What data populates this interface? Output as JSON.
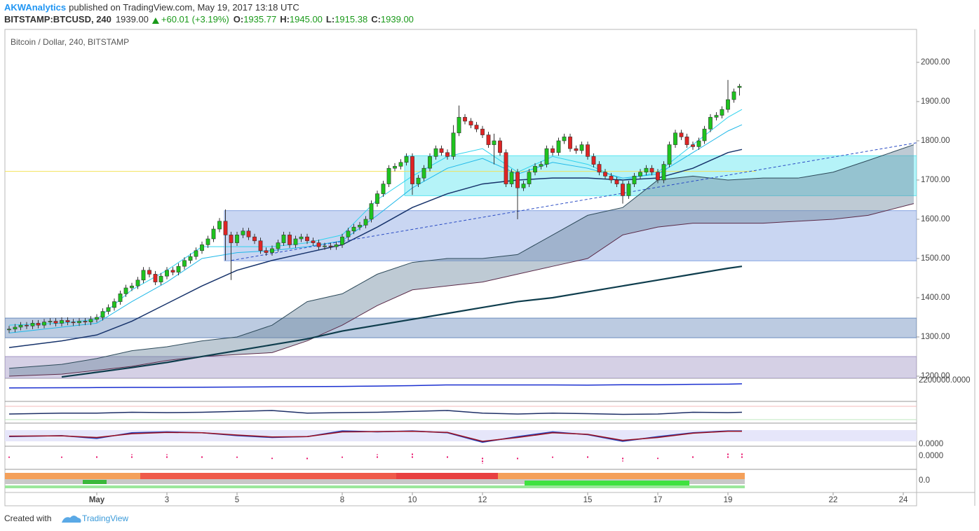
{
  "header": {
    "publisher": "AKWAnalytics",
    "published": "published on TradingView.com, May 19, 2017 13:18 UTC",
    "symbol": "BITSTAMP:BTCUSD, 240",
    "last": "1939.00",
    "change": "+60.01 (+3.19%)",
    "o_label": "O:",
    "o": "1935.77",
    "h_label": "H:",
    "h": "1945.00",
    "l_label": "L:",
    "l": "1915.38",
    "c_label": "C:",
    "c": "1939.00"
  },
  "footer": {
    "text": "Created with",
    "brand": "TradingView"
  },
  "chart_data": {
    "type": "candlestick",
    "title": "Bitcoin / Dollar, 240, BITSTAMP",
    "up_color": "#1ec41e",
    "down_color": "#e02424",
    "x": [
      -1.5,
      -1.33,
      -1.17,
      -1,
      -0.83,
      -0.67,
      -0.5,
      -0.33,
      -0.17,
      0,
      0.17,
      0.33,
      0.5,
      0.67,
      0.83,
      1,
      1.17,
      1.33,
      1.5,
      1.67,
      1.83,
      2,
      2.17,
      2.33,
      2.5,
      2.67,
      2.83,
      3,
      3.17,
      3.33,
      3.5,
      3.67,
      3.83,
      4,
      4.17,
      4.33,
      4.5,
      4.67,
      4.83,
      5,
      5.17,
      5.33,
      5.5,
      5.67,
      5.83,
      6,
      6.17,
      6.33,
      6.5,
      6.67,
      6.83,
      7,
      7.17,
      7.33,
      7.5,
      7.67,
      7.83,
      8,
      8.17,
      8.33,
      8.5,
      8.67,
      8.83,
      9,
      9.17,
      9.33,
      9.5,
      9.67,
      9.83,
      10,
      10.17,
      10.33,
      10.5,
      10.67,
      10.83,
      11,
      11.17,
      11.33,
      11.5,
      11.67,
      11.83,
      12,
      12.17,
      12.33,
      12.5,
      12.67,
      12.83,
      13,
      13.17,
      13.33,
      13.5,
      13.67,
      13.83,
      14,
      14.17,
      14.33,
      14.5,
      14.67,
      14.83,
      15,
      15.17,
      15.33,
      15.5,
      15.67,
      15.83,
      16,
      16.17,
      16.33,
      16.5,
      16.67,
      16.83,
      17,
      17.17,
      17.33,
      17.5,
      17.67,
      17.83,
      18,
      18.17,
      18.33,
      18.5,
      18.67,
      18.83,
      19,
      19.17,
      19.33
    ],
    "open": [
      1318,
      1320,
      1325,
      1330,
      1328,
      1335,
      1330,
      1338,
      1340,
      1335,
      1342,
      1338,
      1336,
      1340,
      1338,
      1345,
      1350,
      1365,
      1375,
      1390,
      1410,
      1425,
      1430,
      1445,
      1470,
      1460,
      1440,
      1455,
      1470,
      1465,
      1480,
      1495,
      1505,
      1520,
      1535,
      1550,
      1575,
      1595,
      1560,
      1540,
      1560,
      1570,
      1555,
      1545,
      1520,
      1515,
      1525,
      1540,
      1560,
      1535,
      1550,
      1555,
      1545,
      1540,
      1530,
      1532,
      1530,
      1535,
      1555,
      1570,
      1580,
      1585,
      1600,
      1640,
      1665,
      1690,
      1730,
      1735,
      1745,
      1760,
      1690,
      1705,
      1730,
      1760,
      1780,
      1770,
      1760,
      1820,
      1860,
      1850,
      1840,
      1830,
      1815,
      1790,
      1800,
      1770,
      1690,
      1720,
      1680,
      1690,
      1720,
      1735,
      1740,
      1780,
      1770,
      1800,
      1810,
      1780,
      1775,
      1790,
      1760,
      1740,
      1720,
      1710,
      1700,
      1690,
      1660,
      1690,
      1710,
      1720,
      1730,
      1720,
      1700,
      1740,
      1790,
      1820,
      1810,
      1790,
      1785,
      1800,
      1830,
      1860,
      1865,
      1880,
      1905,
      1935.77
    ],
    "high": [
      1328,
      1333,
      1338,
      1338,
      1343,
      1343,
      1346,
      1348,
      1348,
      1350,
      1350,
      1346,
      1348,
      1348,
      1353,
      1358,
      1373,
      1383,
      1398,
      1418,
      1433,
      1438,
      1453,
      1478,
      1478,
      1468,
      1463,
      1478,
      1478,
      1488,
      1503,
      1513,
      1528,
      1543,
      1558,
      1583,
      1603,
      1625,
      1568,
      1568,
      1578,
      1578,
      1563,
      1553,
      1528,
      1533,
      1548,
      1568,
      1568,
      1558,
      1563,
      1563,
      1553,
      1548,
      1540,
      1540,
      1543,
      1563,
      1578,
      1588,
      1593,
      1608,
      1648,
      1673,
      1698,
      1738,
      1743,
      1753,
      1768,
      1768,
      1713,
      1738,
      1768,
      1788,
      1788,
      1778,
      1840,
      1890,
      1868,
      1858,
      1848,
      1838,
      1823,
      1818,
      1808,
      1778,
      1728,
      1728,
      1698,
      1728,
      1743,
      1748,
      1788,
      1788,
      1808,
      1818,
      1818,
      1788,
      1798,
      1798,
      1768,
      1748,
      1728,
      1718,
      1708,
      1698,
      1698,
      1718,
      1728,
      1738,
      1738,
      1728,
      1748,
      1798,
      1828,
      1828,
      1818,
      1798,
      1808,
      1838,
      1868,
      1873,
      1888,
      1955,
      1933,
      1945
    ],
    "low": [
      1310,
      1312,
      1317,
      1320,
      1320,
      1322,
      1322,
      1330,
      1327,
      1327,
      1330,
      1328,
      1328,
      1330,
      1330,
      1337,
      1342,
      1357,
      1367,
      1382,
      1402,
      1417,
      1422,
      1437,
      1452,
      1432,
      1432,
      1447,
      1457,
      1457,
      1472,
      1487,
      1497,
      1512,
      1527,
      1542,
      1567,
      1495,
      1445,
      1532,
      1552,
      1547,
      1537,
      1512,
      1507,
      1507,
      1517,
      1532,
      1527,
      1527,
      1542,
      1537,
      1532,
      1522,
      1522,
      1522,
      1522,
      1527,
      1547,
      1562,
      1572,
      1577,
      1592,
      1632,
      1657,
      1682,
      1722,
      1727,
      1737,
      1662,
      1682,
      1697,
      1722,
      1752,
      1762,
      1752,
      1752,
      1812,
      1842,
      1832,
      1822,
      1807,
      1782,
      1740,
      1762,
      1682,
      1682,
      1600,
      1672,
      1682,
      1712,
      1727,
      1732,
      1762,
      1762,
      1792,
      1772,
      1767,
      1767,
      1752,
      1732,
      1712,
      1702,
      1692,
      1682,
      1640,
      1652,
      1682,
      1702,
      1712,
      1712,
      1692,
      1692,
      1732,
      1782,
      1802,
      1782,
      1777,
      1777,
      1792,
      1822,
      1852,
      1857,
      1872,
      1897,
      1915.38
    ],
    "close": [
      1320,
      1325,
      1330,
      1328,
      1335,
      1330,
      1338,
      1340,
      1335,
      1342,
      1338,
      1336,
      1340,
      1338,
      1345,
      1350,
      1365,
      1375,
      1390,
      1410,
      1425,
      1430,
      1445,
      1470,
      1460,
      1440,
      1455,
      1470,
      1465,
      1480,
      1495,
      1505,
      1520,
      1535,
      1550,
      1575,
      1595,
      1560,
      1540,
      1560,
      1570,
      1555,
      1545,
      1520,
      1515,
      1525,
      1540,
      1560,
      1535,
      1550,
      1555,
      1545,
      1540,
      1530,
      1532,
      1530,
      1535,
      1555,
      1570,
      1580,
      1585,
      1600,
      1640,
      1665,
      1690,
      1730,
      1735,
      1745,
      1760,
      1690,
      1705,
      1730,
      1760,
      1780,
      1770,
      1760,
      1820,
      1860,
      1850,
      1840,
      1830,
      1815,
      1790,
      1800,
      1770,
      1690,
      1720,
      1680,
      1690,
      1720,
      1735,
      1740,
      1780,
      1770,
      1800,
      1810,
      1780,
      1775,
      1790,
      1760,
      1740,
      1720,
      1710,
      1700,
      1690,
      1660,
      1690,
      1710,
      1720,
      1730,
      1720,
      1700,
      1740,
      1790,
      1820,
      1810,
      1790,
      1785,
      1800,
      1830,
      1860,
      1865,
      1880,
      1905,
      1925,
      1939
    ],
    "xlim": [
      -1.62,
      24.38
    ],
    "xticks": [
      {
        "value": 1,
        "label": "May"
      },
      3,
      5,
      8,
      10,
      12,
      15,
      17,
      19,
      22,
      24
    ],
    "ylim": [
      1194.6,
      2083.9
    ],
    "yticks": [
      {
        "value": 1200,
        "label": "1200.00"
      },
      {
        "value": 1300,
        "label": "1300.00"
      },
      {
        "value": 1400,
        "label": "1400.00"
      },
      {
        "value": 1500,
        "label": "1500.00"
      },
      {
        "value": 1600,
        "label": "1600.00"
      },
      {
        "value": 1700,
        "label": "1700.00"
      },
      {
        "value": 1800,
        "label": "1800.00"
      },
      {
        "value": 1900,
        "label": "1900.00"
      },
      {
        "value": 2000,
        "label": "2000.00"
      }
    ],
    "zones": [
      {
        "start": -1.62,
        "from": 1194.6,
        "to": 1250,
        "color": "#9b8ec0"
      },
      {
        "start": -1.62,
        "from": 1298,
        "to": 1348,
        "color": "#5f82b8"
      },
      {
        "start": 4.64,
        "from": 1494,
        "to": 1622,
        "color": "#7e9ee0"
      },
      {
        "start": 9.78,
        "from": 1660,
        "to": 1762,
        "color": "#4fe3ef"
      }
    ],
    "hline": {
      "value": 1722,
      "x": [
        -1.62,
        19.8
      ],
      "color": "#f2e35a"
    },
    "cloud": {
      "color": "#6f8aa0",
      "edge": "#5a2a48",
      "x": [
        -1.5,
        0,
        1,
        2,
        3,
        4,
        5,
        6,
        7,
        8,
        9,
        10,
        11,
        12,
        13,
        14,
        15,
        16,
        17,
        18,
        19,
        20,
        21,
        22,
        23,
        24.3
      ],
      "top": [
        1220,
        1230,
        1245,
        1265,
        1275,
        1290,
        1300,
        1330,
        1390,
        1410,
        1460,
        1490,
        1500,
        1500,
        1510,
        1560,
        1610,
        1630,
        1700,
        1710,
        1700,
        1705,
        1705,
        1720,
        1750,
        1790
      ],
      "bottom": [
        1200,
        1205,
        1215,
        1225,
        1240,
        1250,
        1255,
        1260,
        1290,
        1330,
        1380,
        1420,
        1430,
        1440,
        1460,
        1480,
        1500,
        1560,
        1580,
        1590,
        1590,
        1590,
        1595,
        1600,
        1610,
        1640
      ]
    },
    "trendline": {
      "x": [
        4.84,
        24.38
      ],
      "y": [
        1495,
        1795
      ],
      "color": "#2a4cc4"
    },
    "line_x": [
      -1.5,
      0,
      1,
      2,
      3,
      4,
      5,
      6,
      7,
      8,
      9,
      10,
      11,
      12,
      13,
      14,
      15,
      16,
      17,
      18,
      19,
      19.4
    ],
    "lines": [
      {
        "color": "#2fd3ee",
        "width": 1,
        "values": [
          1330,
          1335,
          1345,
          1420,
          1470,
          1530,
          1530,
          1530,
          1540,
          1560,
          1650,
          1710,
          1760,
          1780,
          1720,
          1760,
          1740,
          1700,
          1720,
          1790,
          1860,
          1880
        ]
      },
      {
        "color": "#1fb8e8",
        "width": 1,
        "values": [
          1310,
          1325,
          1335,
          1390,
          1440,
          1500,
          1515,
          1520,
          1530,
          1545,
          1610,
          1680,
          1730,
          1755,
          1715,
          1745,
          1730,
          1705,
          1715,
          1770,
          1825,
          1841
        ]
      },
      {
        "color": "#17336b",
        "width": 1.5,
        "values": [
          1273,
          1290,
          1305,
          1340,
          1385,
          1430,
          1470,
          1495,
          1515,
          1535,
          1580,
          1630,
          1665,
          1690,
          1700,
          1705,
          1705,
          1700,
          1705,
          1730,
          1770,
          1778
        ]
      },
      {
        "color": "#0e3d4d",
        "width": 2.2,
        "values": [
          null,
          1198,
          1210,
          1222,
          1235,
          1250,
          1265,
          1280,
          1295,
          1315,
          1330,
          1345,
          1360,
          1375,
          1390,
          1400,
          1415,
          1430,
          1445,
          1460,
          1475,
          1480
        ]
      }
    ],
    "panes": [
      {
        "label": "2200000.0000",
        "ylim": [
          0,
          100
        ],
        "series": [
          {
            "color": "#1a2fd0",
            "values": [
              60,
              61,
              62,
              63,
              63,
              64,
              65,
              66,
              67,
              68,
              70,
              72,
              76,
              76,
              76,
              76,
              75,
              77,
              77,
              79,
              80,
              82
            ]
          }
        ]
      },
      {
        "ylim": [
          0,
          100
        ],
        "series": [
          {
            "color": "#1d2f66",
            "values": [
              40,
              45,
              45,
              50,
              48,
              50,
              55,
              60,
              45,
              48,
              50,
              55,
              60,
              45,
              40,
              45,
              42,
              38,
              40,
              50,
              48,
              50
            ]
          }
        ]
      },
      {
        "label": "0.0000",
        "ylim": [
          0,
          100
        ],
        "series": [
          {
            "color": "#2340b8",
            "values": [
              40,
              45,
              30,
              60,
              65,
              60,
              45,
              35,
              40,
              70,
              65,
              70,
              60,
              10,
              40,
              65,
              50,
              15,
              40,
              60,
              70,
              70
            ]
          },
          {
            "color": "#9a1020",
            "values": [
              42,
              44,
              35,
              55,
              62,
              60,
              48,
              38,
              40,
              65,
              66,
              68,
              62,
              15,
              35,
              60,
              52,
              20,
              35,
              58,
              68,
              68
            ]
          }
        ]
      },
      {
        "label": "0.0000",
        "ylim": [
          -40,
          40
        ],
        "dots": {
          "color": "#e8106a",
          "values": [
            5,
            5,
            8,
            15,
            15,
            12,
            5,
            -5,
            -8,
            5,
            15,
            20,
            10,
            -25,
            -10,
            5,
            10,
            -15,
            -5,
            10,
            20,
            20
          ]
        }
      },
      {
        "label": "0.0"
      }
    ]
  }
}
